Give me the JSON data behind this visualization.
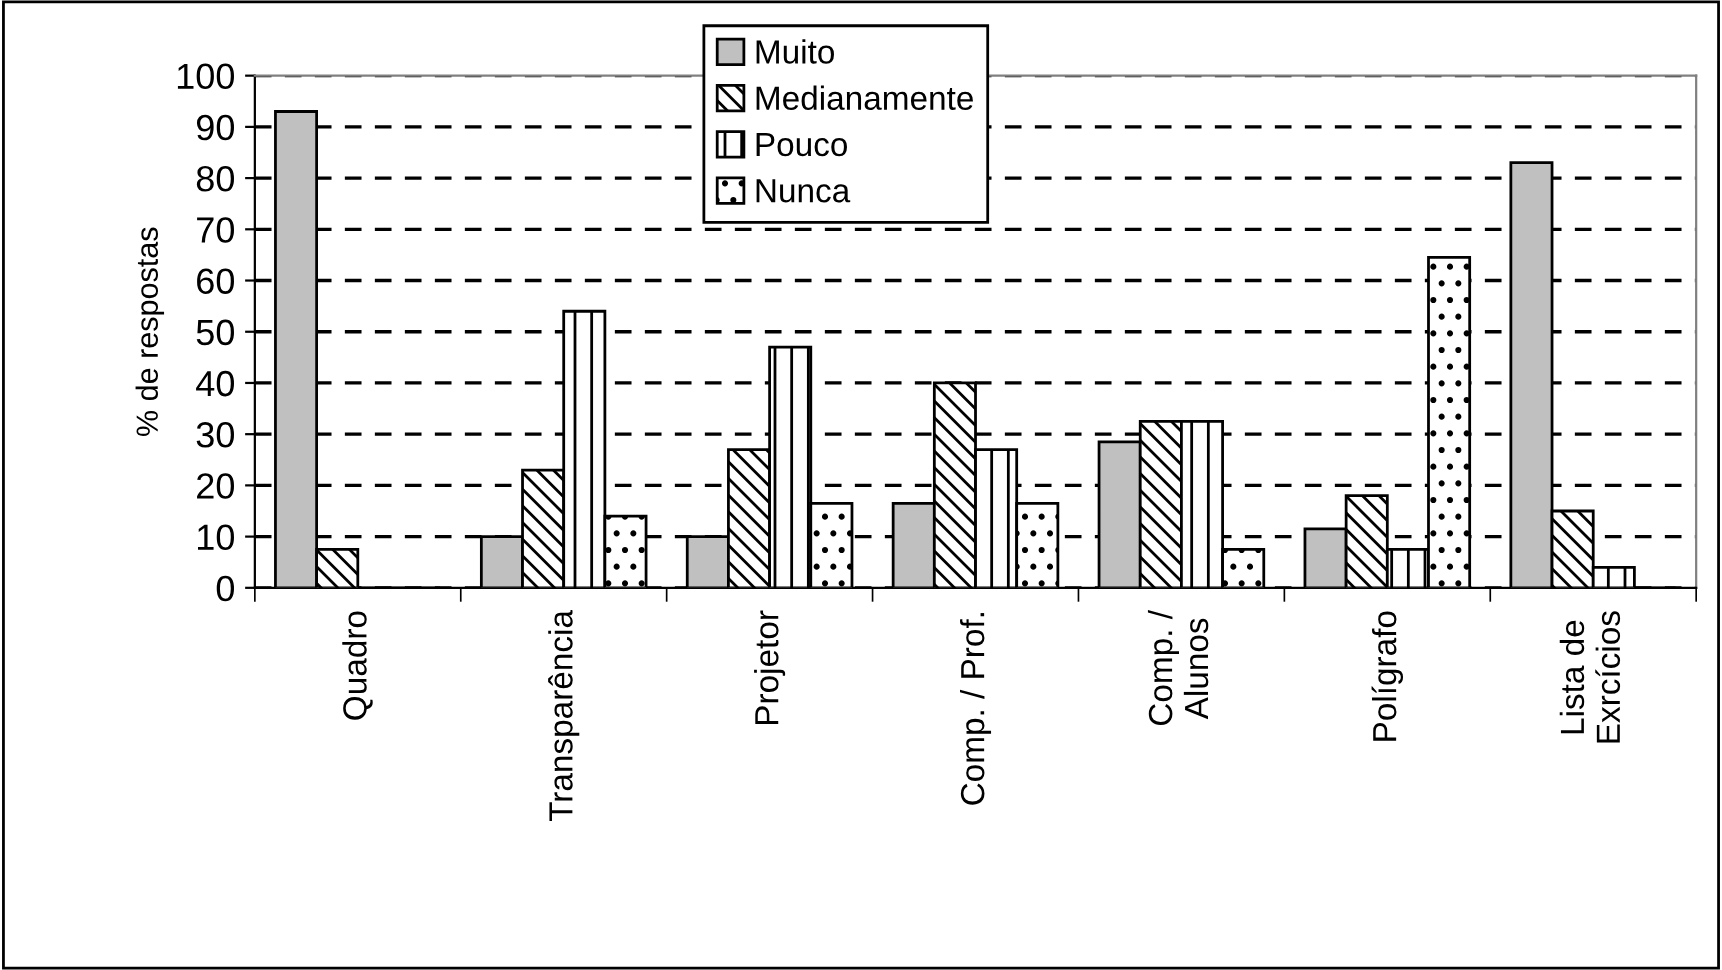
{
  "chart_data": {
    "type": "bar",
    "ylabel": "% de respostas",
    "categories": [
      "Quadro",
      "Transparência",
      "Projetor",
      "Comp. / Prof.",
      "Comp. /\nAlunos",
      "Polígrafo",
      "Lista de\nExrcícios"
    ],
    "series": [
      {
        "name": "Muito",
        "color": "#c0c0c0",
        "values": [
          93,
          10,
          10,
          16.5,
          28.5,
          11.5,
          83
        ]
      },
      {
        "name": "Medianamente",
        "values": [
          7.5,
          23,
          27,
          40,
          32.5,
          18,
          15
        ]
      },
      {
        "name": "Pouco",
        "values": [
          0,
          54,
          47,
          27,
          32.5,
          7.5,
          4
        ]
      },
      {
        "name": "Nunca",
        "values": [
          0,
          14,
          16.5,
          16.5,
          7.5,
          64.5,
          0
        ]
      }
    ],
    "ylim": [
      0,
      100
    ],
    "yticks": [
      0,
      10,
      20,
      30,
      40,
      50,
      60,
      70,
      80,
      90,
      100
    ],
    "grid": "y",
    "legend": "top"
  }
}
